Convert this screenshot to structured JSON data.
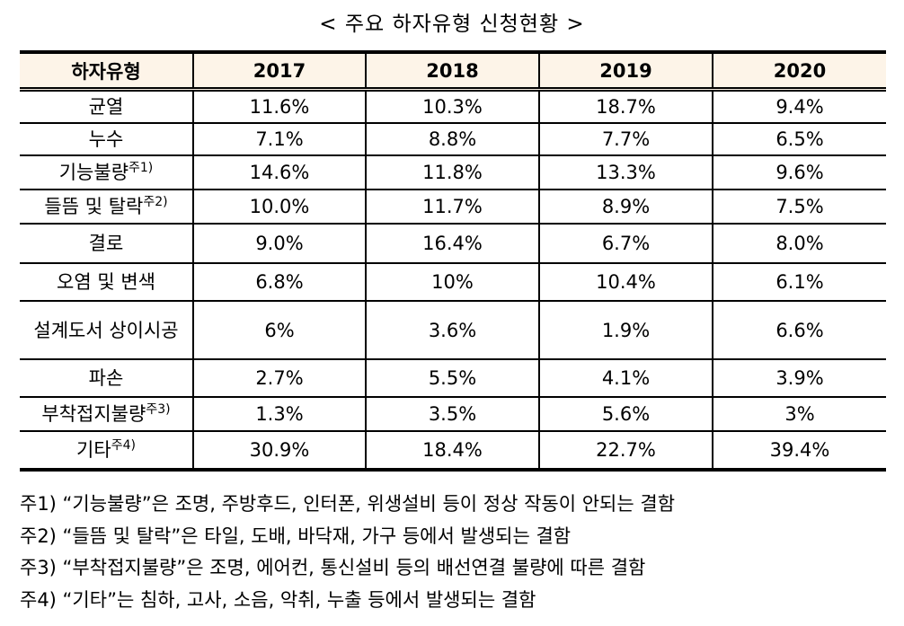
{
  "title": "< 주요 하자유형 신청현황 >",
  "table": {
    "headers": [
      "하자유형",
      "2017",
      "2018",
      "2019",
      "2020"
    ],
    "header_background": "#fdf4e8",
    "rows": [
      {
        "type": "균열",
        "note": "",
        "values": [
          "11.6%",
          "10.3%",
          "18.7%",
          "9.4%"
        ]
      },
      {
        "type": "누수",
        "note": "",
        "values": [
          "7.1%",
          "8.8%",
          "7.7%",
          "6.5%"
        ]
      },
      {
        "type": "기능불량",
        "note": "주1)",
        "values": [
          "14.6%",
          "11.8%",
          "13.3%",
          "9.6%"
        ]
      },
      {
        "type": "들뜸 및 탈락",
        "note": "주2)",
        "values": [
          "10.0%",
          "11.7%",
          "8.9%",
          "7.5%"
        ]
      },
      {
        "type": "결로",
        "note": "",
        "values": [
          "9.0%",
          "16.4%",
          "6.7%",
          "8.0%"
        ]
      },
      {
        "type": "오염 및 변색",
        "note": "",
        "values": [
          "6.8%",
          "10%",
          "10.4%",
          "6.1%"
        ]
      },
      {
        "type": "설계도서 상이시공",
        "note": "",
        "values": [
          "6%",
          "3.6%",
          "1.9%",
          "6.6%"
        ]
      },
      {
        "type": "파손",
        "note": "",
        "values": [
          "2.7%",
          "5.5%",
          "4.1%",
          "3.9%"
        ]
      },
      {
        "type": "부착접지불량",
        "note": "주3)",
        "values": [
          "1.3%",
          "3.5%",
          "5.6%",
          "3%"
        ]
      },
      {
        "type": "기타",
        "note": "주4)",
        "values": [
          "30.9%",
          "18.4%",
          "22.7%",
          "39.4%"
        ]
      }
    ]
  },
  "notes": [
    "주1) “기능불량”은 조명, 주방후드, 인터폰, 위생설비 등이 정상 작동이 안되는 결함",
    "주2) “들뜸 및 탈락”은 타일, 도배, 바닥재, 가구 등에서 발생되는 결함",
    "주3) “부착접지불량”은 조명, 에어컨, 통신설비 등의 배선연결 불량에 따른 결함",
    "주4) “기타”는 침하, 고사, 소음, 악취, 누출 등에서 발생되는 결함"
  ]
}
